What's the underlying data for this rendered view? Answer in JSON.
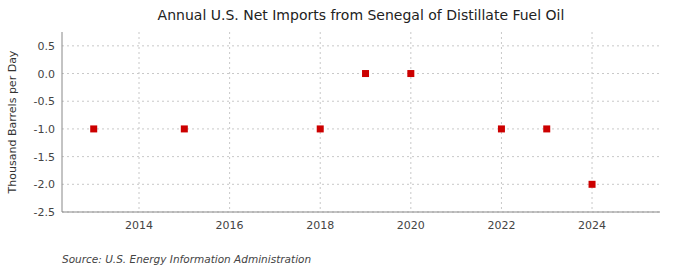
{
  "chart_data": {
    "type": "scatter",
    "title": "Annual U.S. Net Imports from Senegal of Distillate Fuel Oil",
    "y_label": "Thousand Barrels per Day",
    "annotations": [
      "Source: U.S. Energy Information Administration"
    ],
    "x": [
      2013,
      2015,
      2018,
      2019,
      2020,
      2022,
      2023,
      2024
    ],
    "values": [
      -1.0,
      -1.0,
      -1.0,
      0.0,
      0.0,
      -1.0,
      -1.0,
      -2.0
    ],
    "color": "#cc0000",
    "marker": "square",
    "xlim": [
      2012.3,
      2025.5
    ],
    "ylim": [
      -2.5,
      0.75
    ],
    "xticks": [
      2014,
      2016,
      2018,
      2020,
      2022,
      2024
    ],
    "yticks": [
      0.5,
      {
        "value": 0.0,
        "label": "0.0"
      },
      -0.5,
      {
        "value": -1.0,
        "label": "-1.0"
      },
      -1.5,
      {
        "value": -2.0,
        "label": "-2.0"
      },
      -2.5
    ],
    "grid": true
  }
}
